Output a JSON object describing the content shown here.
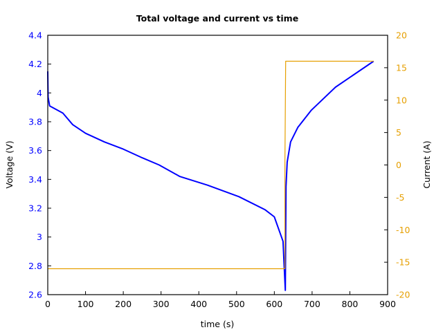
{
  "chart_data": {
    "type": "line",
    "title": "Total voltage and current vs time",
    "xlabel": "time (s)",
    "ylabel": "Voltage (V)",
    "y2label": "Current (A)",
    "xlim": [
      0,
      900
    ],
    "ylim": [
      2.6,
      4.4
    ],
    "y2lim": [
      -20,
      20
    ],
    "xticks": [
      0,
      100,
      200,
      300,
      400,
      500,
      600,
      700,
      800,
      900
    ],
    "yticks": [
      2.6,
      2.8,
      3.0,
      3.2,
      3.4,
      3.6,
      3.8,
      4.0,
      4.2,
      4.4
    ],
    "ytick_labels": [
      "2.6",
      "2.8",
      "3",
      "3.2",
      "3.4",
      "3.6",
      "3.8",
      "4",
      "4.2",
      "4.4"
    ],
    "y2ticks": [
      -20,
      -15,
      -10,
      -5,
      0,
      5,
      10,
      15,
      20
    ],
    "grid": false,
    "legend": null,
    "series": [
      {
        "name": "Voltage",
        "axis": "left",
        "color": "#0000ff",
        "x": [
          0,
          1,
          5,
          40,
          66,
          100,
          150,
          200,
          250,
          295,
          350,
          423,
          506,
          575,
          600,
          623,
          629,
          631,
          634,
          643,
          662,
          698,
          762,
          863
        ],
        "y": [
          4.15,
          3.97,
          3.91,
          3.86,
          3.78,
          3.72,
          3.66,
          3.61,
          3.55,
          3.5,
          3.42,
          3.36,
          3.28,
          3.19,
          3.14,
          2.97,
          2.63,
          3.35,
          3.52,
          3.66,
          3.76,
          3.88,
          4.04,
          4.22
        ]
      },
      {
        "name": "Current",
        "axis": "right",
        "color": "#e69f00",
        "x": [
          0,
          628,
          628,
          630,
          863
        ],
        "y": [
          -16,
          -16,
          0,
          16,
          16
        ]
      }
    ]
  },
  "colors": {
    "voltage_axis": "#0000ff",
    "current_axis": "#e69f00",
    "frame": "#000000"
  }
}
